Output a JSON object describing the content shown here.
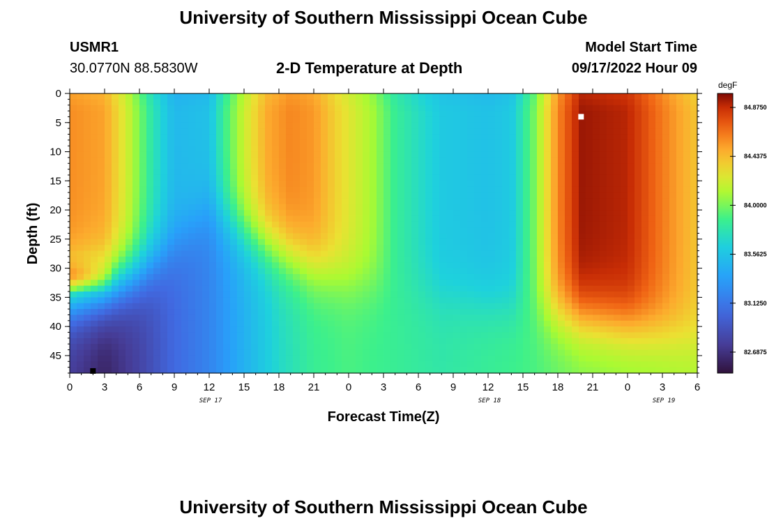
{
  "header": {
    "title": "University of Southern Mississippi Ocean Cube",
    "station": "USMR1",
    "coords": "30.0770N  88.5830W",
    "plot_title": "2-D Temperature at Depth",
    "model_label": "Model Start Time",
    "model_time": "09/17/2022 Hour 09"
  },
  "footer": {
    "title": "University of Southern Mississippi Ocean Cube"
  },
  "chart_data": {
    "type": "heatmap",
    "title": "2-D Temperature at Depth",
    "xlabel": "Forecast Time(Z)",
    "ylabel": "Depth (ft)",
    "x_hours_range": [
      0,
      54
    ],
    "ylim": [
      0,
      48
    ],
    "x_tick_labels": [
      "0",
      "3",
      "6",
      "9",
      "12",
      "15",
      "18",
      "21",
      "0",
      "3",
      "6",
      "9",
      "12",
      "15",
      "18",
      "21",
      "0",
      "3",
      "6"
    ],
    "y_ticks": [
      0,
      5,
      10,
      15,
      20,
      25,
      30,
      35,
      40,
      45
    ],
    "date_labels": [
      {
        "label": "SEP 17",
        "hour": 12
      },
      {
        "label": "SEP 18",
        "hour": 36
      },
      {
        "label": "SEP 19",
        "hour": 51
      }
    ],
    "colorbar": {
      "unit": "degF",
      "min": 82.5,
      "max": 85.0,
      "tick_values": [
        82.6875,
        83.125,
        83.5625,
        84.0,
        84.4375,
        84.875
      ],
      "tick_labels": [
        "82.6875",
        "83.1250",
        "83.5625",
        "84.0000",
        "84.4375",
        "84.8750"
      ]
    },
    "markers": [
      {
        "name": "max",
        "hour": 44,
        "depth": 4,
        "color": "#ffffff"
      },
      {
        "name": "min",
        "hour": 2,
        "depth": 48,
        "color": "#000000"
      }
    ],
    "surface_profile": [
      {
        "hour": 0,
        "temp": 84.58
      },
      {
        "hour": 3,
        "temp": 84.52
      },
      {
        "hour": 5,
        "temp": 84.2
      },
      {
        "hour": 7,
        "temp": 83.8
      },
      {
        "hour": 9,
        "temp": 83.5
      },
      {
        "hour": 12,
        "temp": 83.55
      },
      {
        "hour": 13,
        "temp": 83.8
      },
      {
        "hour": 15,
        "temp": 84.2
      },
      {
        "hour": 17,
        "temp": 84.5
      },
      {
        "hour": 19,
        "temp": 84.6
      },
      {
        "hour": 21,
        "temp": 84.55
      },
      {
        "hour": 23,
        "temp": 84.35
      },
      {
        "hour": 26,
        "temp": 84.1
      },
      {
        "hour": 28,
        "temp": 83.85
      },
      {
        "hour": 32,
        "temp": 83.6
      },
      {
        "hour": 36,
        "temp": 83.55
      },
      {
        "hour": 38,
        "temp": 83.6
      },
      {
        "hour": 40,
        "temp": 84.0
      },
      {
        "hour": 42,
        "temp": 84.6
      },
      {
        "hour": 44,
        "temp": 84.95
      },
      {
        "hour": 48,
        "temp": 84.9
      },
      {
        "hour": 52,
        "temp": 84.55
      },
      {
        "hour": 54,
        "temp": 84.4
      }
    ],
    "bottom_profile": [
      {
        "hour": 0,
        "temp": 82.75
      },
      {
        "hour": 3,
        "temp": 82.6
      },
      {
        "hour": 6,
        "temp": 82.8
      },
      {
        "hour": 9,
        "temp": 83.05
      },
      {
        "hour": 12,
        "temp": 83.2
      },
      {
        "hour": 15,
        "temp": 83.45
      },
      {
        "hour": 18,
        "temp": 83.7
      },
      {
        "hour": 21,
        "temp": 83.85
      },
      {
        "hour": 24,
        "temp": 83.9
      },
      {
        "hour": 28,
        "temp": 83.85
      },
      {
        "hour": 32,
        "temp": 83.8
      },
      {
        "hour": 36,
        "temp": 83.85
      },
      {
        "hour": 40,
        "temp": 83.9
      },
      {
        "hour": 44,
        "temp": 84.0
      },
      {
        "hour": 50,
        "temp": 84.05
      },
      {
        "hour": 54,
        "temp": 84.1
      }
    ],
    "thermocline_depth_profile": [
      {
        "hour": 0,
        "depth": 35
      },
      {
        "hour": 3,
        "depth": 34
      },
      {
        "hour": 6,
        "depth": 31
      },
      {
        "hour": 8,
        "depth": 28
      },
      {
        "hour": 10,
        "depth": 24
      },
      {
        "hour": 12,
        "depth": 20
      },
      {
        "hour": 15,
        "depth": 24
      },
      {
        "hour": 18,
        "depth": 27
      },
      {
        "hour": 21,
        "depth": 30
      },
      {
        "hour": 24,
        "depth": 32
      },
      {
        "hour": 30,
        "depth": 34
      },
      {
        "hour": 36,
        "depth": 36
      },
      {
        "hour": 42,
        "depth": 38
      },
      {
        "hour": 48,
        "depth": 40
      },
      {
        "hour": 54,
        "depth": 42
      }
    ],
    "deep_layer_anomaly": [
      {
        "hour": 0,
        "depth": 31,
        "temp": 84.6
      },
      {
        "hour": 2,
        "depth": 31,
        "temp": 84.6
      }
    ]
  }
}
